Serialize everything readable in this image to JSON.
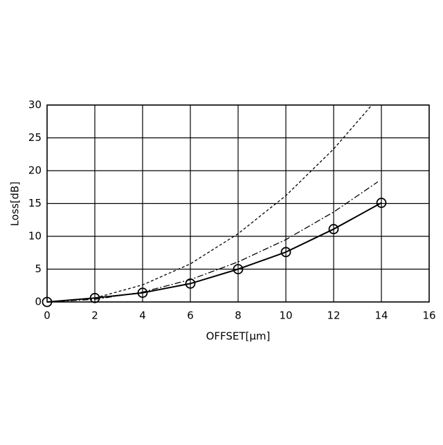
{
  "chart_data": {
    "type": "line",
    "xlabel": "OFFSET[μm]",
    "ylabel": "Loss[dB]",
    "xlim": [
      0,
      16
    ],
    "xticks": [
      0,
      2,
      4,
      6,
      8,
      10,
      12,
      14,
      16
    ],
    "ylim": [
      0,
      30
    ],
    "yticks": [
      0,
      5,
      10,
      15,
      20,
      25,
      30
    ],
    "grid": true,
    "series": [
      {
        "color": "#000000",
        "line_style": "solid",
        "marker": "circle",
        "x": [
          0,
          2,
          4,
          6,
          8,
          10,
          12,
          14
        ],
        "values": [
          0,
          0.6,
          1.4,
          2.8,
          5.0,
          7.6,
          11.1,
          15.1
        ]
      },
      {
        "color": "#000000",
        "line_style": "dashed",
        "marker": "none",
        "x": [
          0,
          2,
          4,
          6,
          8,
          10,
          12,
          13.6
        ],
        "values": [
          0,
          0.6,
          2.6,
          5.8,
          10.4,
          16.2,
          23.3,
          30
        ]
      },
      {
        "color": "#000000",
        "line_style": "dashdot",
        "marker": "none",
        "x": [
          0,
          2,
          4,
          6,
          8,
          10,
          12,
          13.85
        ],
        "values": [
          0,
          0.4,
          1.5,
          3.4,
          6.1,
          9.5,
          13.7,
          18.3
        ]
      }
    ]
  }
}
